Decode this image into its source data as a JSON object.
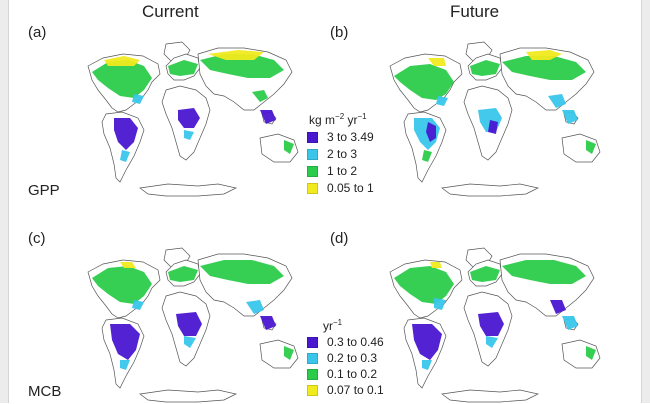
{
  "columns": {
    "current": "Current",
    "future": "Future"
  },
  "panels": {
    "a": "(a)",
    "b": "(b)",
    "c": "(c)",
    "d": "(d)"
  },
  "rows": {
    "gpp": "GPP",
    "mcb": "MCB"
  },
  "legend_gpp": {
    "unit": {
      "base1": "kg m",
      "sup1": "−2",
      "base2": " yr",
      "sup2": "−1"
    },
    "classes": [
      {
        "label": "3 to 3.49",
        "color": "#4a17d1"
      },
      {
        "label": "2 to 3",
        "color": "#39c6ea"
      },
      {
        "label": "1 to 2",
        "color": "#2bcc4b"
      },
      {
        "label": "0.05 to 1",
        "color": "#f1ea1d"
      }
    ]
  },
  "legend_mcb": {
    "unit": {
      "base": "yr",
      "sup": "−1"
    },
    "classes": [
      {
        "label": "0.3 to 0.46",
        "color": "#4a17d1"
      },
      {
        "label": "0.2 to 0.3",
        "color": "#39c6ea"
      },
      {
        "label": "0.1 to 0.2",
        "color": "#2bcc4b"
      },
      {
        "label": "0.07 to 0.1",
        "color": "#f1ea1d"
      }
    ]
  }
}
